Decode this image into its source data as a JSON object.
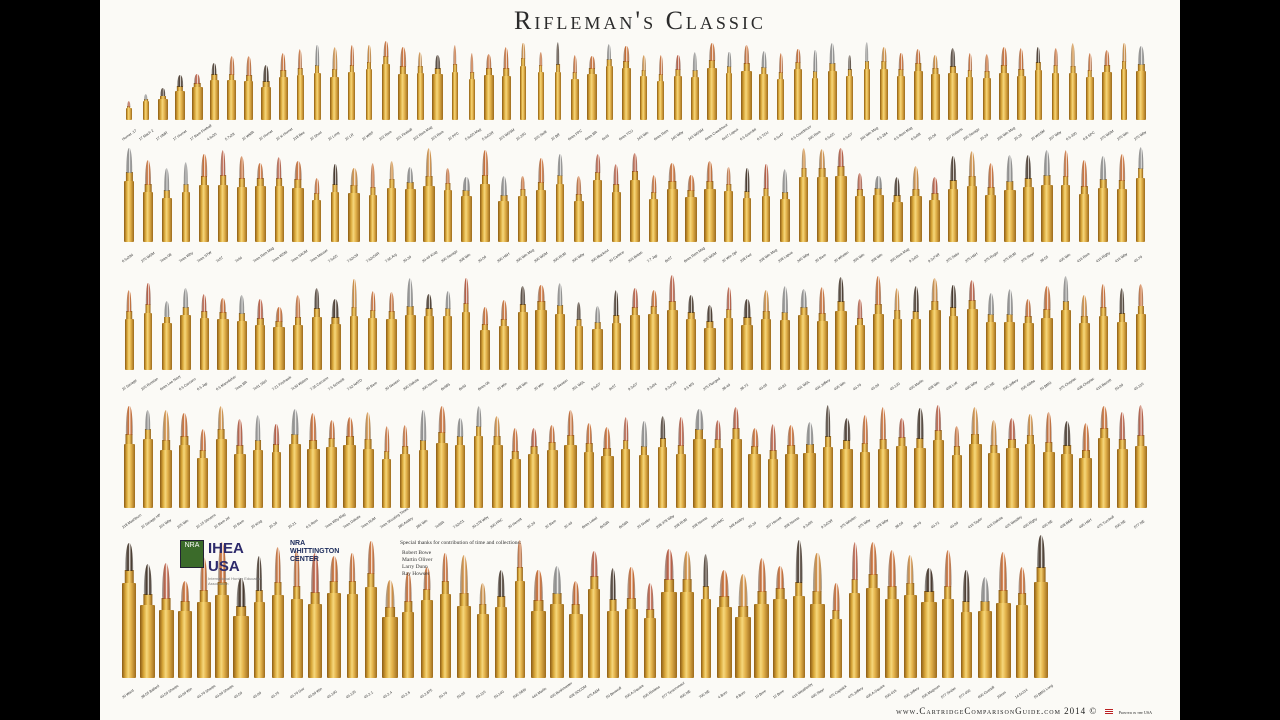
{
  "poster": {
    "title": "Rifleman's Classic",
    "footer_site": "www.CartridgeComparisonGuide.com",
    "footer_year": "2014 ©",
    "footer_made": "Printed in the USA",
    "thanks_heading": "Special thanks for contribution of time and collections:",
    "thanks_names": [
      "Robert Bowe",
      "Martin Oliver",
      "Larry Dunn",
      "Ray Howser"
    ],
    "logos": {
      "nra_text": "NRA",
      "ihea_text": "IHEA USA",
      "ihea_sub": "International Hunter Education Association",
      "whittington_line1": "NRA",
      "whittington_line2": "WHITTINGTON",
      "whittington_line3": "CENTER"
    },
    "colors": {
      "background": "#fbfaf6",
      "brass": "#d9a83b",
      "copper_tip": "#c8662a",
      "lead_tip": "#8c8c8c",
      "black_tip": "#3a2a1e"
    },
    "rows": [
      {
        "count": 60,
        "labels": [
          "Hornet .17",
          "17 Mach 2",
          "17 HMR",
          "17 Hornet",
          "17 Rem Fireball",
          "4.6x30",
          "5.7x28",
          "22 WMR",
          "22 Hornet",
          "22 K-Hornet",
          "218 Bee",
          "22 Short",
          "22 Long",
          "22 LR",
          "22 WRF",
          "222 Rem",
          "221 Fireball",
          "222 Rem Mag",
          "223 Rem",
          "22 PPC",
          "5.6x50 Mag",
          "5.6x52R",
          "223 WSSM",
          "22-250",
          "220 Swift",
          "22 BR",
          "6mm PPC",
          "6mm BR",
          "6x45",
          "6mm TCU",
          "243 Win",
          "6mm Rem",
          "240 Wby",
          "243 WSSM",
          "6mm Creedmoor",
          "6x47 Lapua",
          "6.5 Grendel",
          "6.5 TCU",
          "6.5x47",
          "6.5 Creedmoor",
          "260 Rem",
          "6.5x55",
          "6.5x57",
          "264 Win Mag",
          "6.5-284",
          "6.5 Rem Mag",
          "6.5x68",
          "25-06",
          "257 Roberts",
          "250 Savage",
          "25-20",
          "256 Win Mag",
          "25-35",
          "25 WSSM",
          "257 Wby",
          "6.5-300",
          "6.8 SPC",
          "270 WSM",
          "270 Win",
          "270 Wby"
        ]
      },
      {
        "count": 55,
        "labels": [
          "6.5x284",
          "270 WSM",
          "7mm-08",
          "7mm Wby",
          "7mm STW",
          "7x57",
          "7x64",
          "7mm Rem Mag",
          "7mm WSM",
          "7mm SAUM",
          "7mm Mauser",
          "7.5x55",
          "7.62x39",
          "7.62x54R",
          "7.65 Arg",
          "30-30",
          "30-40 Krag",
          "300 Savage",
          "308 Win",
          "30-06",
          "300 H&H",
          "300 Win Mag",
          "300 WSM",
          "300 RUM",
          "300 Wby",
          "300 Blackout",
          "30 Carbine",
          "303 British",
          "7.7 Jap",
          "8x57",
          "8mm Rem Mag",
          "325 WSM",
          "32 Win Spl",
          "338 Fed",
          "338 Win Mag",
          "338 Lapua",
          "340 Wby",
          "35 Rem",
          "35 Whelen",
          "356 Win",
          "358 Win",
          "350 Rem Mag",
          "9.3x62",
          "9.3x74R",
          "370 Sako",
          "375 H&H",
          "375 Ruger",
          "375 RUM",
          "376 Steyr",
          "38-55",
          "405 Win",
          "416 Rem",
          "416 Rigby",
          "416 Wby",
          "45-70"
        ]
      },
      {
        "count": 55,
        "labels": [
          "22 Savage",
          "220 Russian",
          "6mm Lee Navy",
          "6.5 Carcano",
          "6.5 Jap",
          "6.5 Mannlicher",
          "7mm BR",
          "7x61 S&H",
          "7.21 Firehawk",
          "7x30 Waters",
          "7.35 Carcano",
          "7.5 Schmidt",
          "7.62 NATO",
          "30 Rem",
          "30 Newton",
          "300 Dakota",
          "300 Norma",
          "8x68S",
          "8x60",
          "8mm-06",
          "33 Win",
          "348 Win",
          "35 Win",
          "35 Newton",
          "351 WSL",
          "9.5x57",
          "9x57",
          "9.3x57",
          "9.3x64",
          "9.3x72R",
          "9.5 MS",
          "375 Flanged",
          "38-40",
          "38-72",
          "40-65",
          "40-82",
          "401 WSL",
          "404 Jeffery",
          "405 Win",
          "40-70",
          "45-90",
          "45-120",
          "450 Marlin",
          "458 Win",
          "458 Lott",
          "460 Wby",
          "470 NE",
          "500 Jeffery",
          "505 Gibbs",
          "50 BMG",
          "375 Cheytac",
          "408 Cheytac",
          "416 Barrett",
          "50-90",
          "45-110"
        ]
      },
      {
        "count": 56,
        "labels": [
          "218 Mashburn",
          "22 Savage HP",
          "224 Wby",
          "225 Win",
          "22-15 Stevens",
          "22 Rem Jet",
          "25 Rem",
          "25 Krag",
          "25-36",
          "25-21",
          "6.5 Rem",
          "7mm Wby Mag",
          "7mm Dakota",
          "7mm RUM",
          "7mm Shooting Times",
          "280 Ackley",
          "284 Win",
          "7x65R",
          "7.62x51",
          "30-378 Wby",
          "300 PRC",
          "30 Herrett",
          "32-20",
          "32 Rem",
          "32-40",
          "8mm Lebel",
          "8x50R",
          "8x56R",
          "33 Nosler",
          "338-378 Wby",
          "338 RUM",
          "338 Norma",
          "340 PMC",
          "348 Ackley",
          "35-30",
          "357 Herrett",
          "358 Norma",
          "9.3x66",
          "9.3x53R",
          "375 Whelen",
          "375 Wby",
          "378 Wby",
          "38-56",
          "38-70",
          "40-72",
          "40-90",
          "416 Taylor",
          "416 Dakota",
          "425 Westley",
          "450 Rigby",
          "450 NE",
          "458 B&M",
          "465 H&H",
          "475 Turnbull",
          "500 NE",
          "577 NE"
        ]
      },
      {
        "count": 50,
        "labels": [
          "30 Ward",
          "38-55 Ballard",
          "40-50 Sharps",
          "40-60 Win",
          "40-70 Sharps",
          "40-90 Sharps",
          "45-50",
          "45-60",
          "45-75",
          "45-70 Gov",
          "45-90 Win",
          "45-100",
          "45-125",
          "45-2.1",
          "45-2.4",
          "45-2.6",
          "45-2.875",
          "50-70",
          "50-95",
          "50-110",
          "50-140",
          "500 S&W",
          "444 Marlin",
          "450 Bushmaster",
          "458 SOCOM",
          "475 A&M",
          "50 Beowulf",
          "500 A-Square",
          "505 Rimless",
          "577 Tyrannosaur",
          "600 NE",
          "700 NE",
          "4 Bore",
          "8 Bore",
          "10 Bore",
          "12 Bore",
          "416 Weatherby",
          "460 Steyr",
          "470 Capstick",
          "475 Jeffery",
          "495 A-Square",
          "500-416",
          "500 Jeffery",
          "505 Magnum",
          "577 Snider",
          "577-450",
          "600 Overkill",
          "20mm",
          "14.5x114",
          "50 BMG Long"
        ]
      }
    ]
  }
}
